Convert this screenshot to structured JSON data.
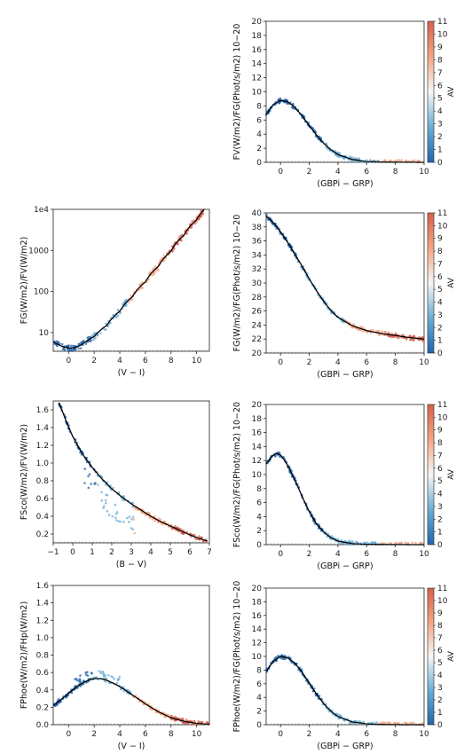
{
  "colors": {
    "low": "#2166ac",
    "mid": "#f7f7f7",
    "high": "#d6604d",
    "model": "#000000"
  },
  "chart_data": [
    {
      "id": "p1",
      "type": "scatter",
      "xlabel": "(GBPi − GRP)",
      "ylabel": "FV(W/m2)/FG(Phot/s/m2) 10−20",
      "xlim": [
        -1,
        10
      ],
      "ylim": [
        0,
        20
      ],
      "xticks": [
        "0",
        "2",
        "4",
        "6",
        "8",
        "10"
      ],
      "yticks": [
        "0",
        "2",
        "4",
        "6",
        "8",
        "10",
        "12",
        "14",
        "16",
        "18",
        "20"
      ],
      "colorbar": {
        "label": "AV",
        "ticks": [
          "0",
          "1",
          "2",
          "3",
          "4",
          "5",
          "6",
          "7",
          "8",
          "9",
          "10",
          "11"
        ]
      },
      "model_line": {
        "x": [
          -1,
          -0.5,
          0,
          0.5,
          1,
          1.5,
          2,
          2.5,
          3,
          3.5,
          4,
          5,
          6,
          7,
          8,
          9,
          10
        ],
        "y": [
          6.8,
          8.2,
          8.8,
          8.6,
          7.8,
          6.6,
          5.2,
          3.9,
          2.7,
          1.8,
          1.1,
          0.4,
          0.12,
          0.05,
          0.02,
          0.01,
          0.0
        ]
      }
    },
    {
      "id": "p2",
      "type": "scatter",
      "yscale": "log",
      "xlabel": "(V − I)",
      "ylabel": "FG(W/m2)/FV(W/m2)",
      "xlim": [
        -1.2,
        11
      ],
      "ylim": [
        3.5,
        10000
      ],
      "xticks": [
        "0",
        "2",
        "4",
        "6",
        "8",
        "10"
      ],
      "yticks": [
        "10",
        "100",
        "1000",
        "1e4"
      ],
      "model_line": {
        "x": [
          -1.2,
          -0.5,
          0,
          0.5,
          1,
          2,
          3,
          4,
          5,
          6,
          7,
          8,
          9,
          10,
          10.6
        ],
        "y": [
          5.8,
          4.6,
          4.2,
          4.3,
          5.0,
          8.0,
          15,
          33,
          75,
          170,
          400,
          950,
          2300,
          5500,
          10000
        ]
      }
    },
    {
      "id": "p3",
      "type": "scatter",
      "xlabel": "(GBPi − GRP)",
      "ylabel": "FG(W/m2)/FG(Phot/s/m2) 10−20",
      "xlim": [
        -1,
        10
      ],
      "ylim": [
        20,
        40
      ],
      "xticks": [
        "0",
        "2",
        "4",
        "6",
        "8",
        "10"
      ],
      "yticks": [
        "20",
        "22",
        "24",
        "26",
        "28",
        "30",
        "32",
        "34",
        "36",
        "38",
        "40"
      ],
      "colorbar": {
        "label": "AV",
        "ticks": [
          "0",
          "1",
          "2",
          "3",
          "4",
          "5",
          "6",
          "7",
          "8",
          "9",
          "10",
          "11"
        ]
      },
      "model_line": {
        "x": [
          -1,
          -0.5,
          0,
          0.5,
          1,
          1.5,
          2,
          2.5,
          3,
          3.5,
          4,
          5,
          6,
          7,
          8,
          9,
          10
        ],
        "y": [
          39.6,
          38.6,
          37.3,
          35.8,
          34.1,
          32.4,
          30.6,
          28.9,
          27.4,
          26.1,
          25.1,
          23.9,
          23.2,
          22.8,
          22.5,
          22.2,
          22.0
        ]
      }
    },
    {
      "id": "p4",
      "type": "scatter",
      "xlabel": "(B − V)",
      "ylabel": "FSco(W/m2)/FV(W/m2)",
      "xlim": [
        -1,
        7
      ],
      "ylim": [
        0.1,
        1.7
      ],
      "xticks": [
        "−1",
        "0",
        "1",
        "2",
        "3",
        "4",
        "5",
        "6",
        "7"
      ],
      "yticks": [
        "0.2",
        "0.4",
        "0.6",
        "0.8",
        "1.0",
        "1.2",
        "1.4",
        "1.6"
      ],
      "model_line": {
        "x": [
          -0.7,
          -0.3,
          0,
          0.5,
          1,
          1.5,
          2,
          2.5,
          3,
          3.5,
          4,
          4.5,
          5,
          5.5,
          6,
          6.5,
          6.9
        ],
        "y": [
          1.68,
          1.45,
          1.3,
          1.1,
          0.95,
          0.82,
          0.71,
          0.62,
          0.54,
          0.47,
          0.4,
          0.34,
          0.29,
          0.24,
          0.19,
          0.15,
          0.12
        ]
      }
    },
    {
      "id": "p5",
      "type": "scatter",
      "xlabel": "(GBPi − GRP)",
      "ylabel": "FSco(W/m2)/FG(Phot/s/m2) 10−20",
      "xlim": [
        -1,
        10
      ],
      "ylim": [
        0,
        20
      ],
      "xticks": [
        "0",
        "2",
        "4",
        "6",
        "8",
        "10"
      ],
      "yticks": [
        "0",
        "2",
        "4",
        "6",
        "8",
        "10",
        "12",
        "14",
        "16",
        "18",
        "20"
      ],
      "colorbar": {
        "label": "AV",
        "ticks": [
          "0",
          "1",
          "2",
          "3",
          "4",
          "5",
          "6",
          "7",
          "8",
          "9",
          "10",
          "11"
        ]
      },
      "model_line": {
        "x": [
          -1,
          -0.6,
          -0.3,
          0,
          0.3,
          0.6,
          1,
          1.5,
          2,
          2.5,
          3,
          3.5,
          4,
          5,
          6,
          8,
          10
        ],
        "y": [
          11.5,
          12.6,
          13.0,
          12.8,
          12.0,
          10.9,
          9.2,
          6.9,
          4.7,
          3.0,
          1.8,
          1.0,
          0.5,
          0.15,
          0.05,
          0.01,
          0.0
        ]
      }
    },
    {
      "id": "p6",
      "type": "scatter",
      "xlabel": "(V − I)",
      "ylabel": "FPhoe(W/m2)/FHp(W/m2)",
      "xlim": [
        -1.2,
        11
      ],
      "ylim": [
        0,
        1.6
      ],
      "xticks": [
        "0",
        "2",
        "4",
        "6",
        "8",
        "10"
      ],
      "yticks": [
        "0.0",
        "0.2",
        "0.4",
        "0.6",
        "0.8",
        "1.0",
        "1.2",
        "1.4",
        "1.6"
      ],
      "model_line": {
        "x": [
          -1.2,
          -0.5,
          0,
          0.5,
          1,
          1.5,
          2,
          2.5,
          3,
          4,
          5,
          6,
          7,
          8,
          9,
          10,
          11
        ],
        "y": [
          0.22,
          0.3,
          0.36,
          0.42,
          0.47,
          0.51,
          0.53,
          0.53,
          0.51,
          0.44,
          0.34,
          0.24,
          0.15,
          0.08,
          0.04,
          0.015,
          0.005
        ]
      }
    },
    {
      "id": "p7",
      "type": "scatter",
      "xlabel": "(GBPi − GRP)",
      "ylabel": "FPhoe(W/m2)/FG(Phot/s/m2) 10−20",
      "xlim": [
        -1,
        10
      ],
      "ylim": [
        0,
        20
      ],
      "xticks": [
        "0",
        "2",
        "4",
        "6",
        "8",
        "10"
      ],
      "yticks": [
        "0",
        "2",
        "4",
        "6",
        "8",
        "10",
        "12",
        "14",
        "16",
        "18",
        "20"
      ],
      "colorbar": {
        "label": "AV",
        "ticks": [
          "0",
          "1",
          "2",
          "3",
          "4",
          "5",
          "6",
          "7",
          "8",
          "9",
          "10",
          "11"
        ]
      },
      "model_line": {
        "x": [
          -1,
          -0.5,
          0,
          0.5,
          1,
          1.5,
          2,
          2.5,
          3,
          3.5,
          4,
          5,
          6,
          7,
          8,
          9,
          10
        ],
        "y": [
          7.8,
          9.3,
          10.0,
          9.8,
          9.0,
          7.7,
          6.1,
          4.5,
          3.1,
          2.0,
          1.2,
          0.4,
          0.12,
          0.04,
          0.01,
          0.0,
          0.0
        ]
      }
    }
  ]
}
